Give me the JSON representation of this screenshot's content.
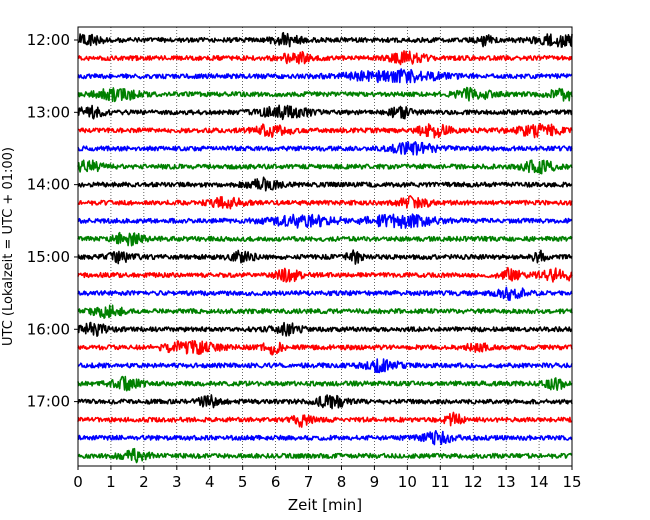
{
  "chart_data": {
    "type": "line",
    "title": "",
    "xlabel": "Zeit  [min]",
    "ylabel": "UTC (Lokalzeit = UTC + 01:00)",
    "xlim": [
      0,
      15
    ],
    "x_ticks": [
      "0",
      "1",
      "2",
      "3",
      "4",
      "5",
      "6",
      "7",
      "8",
      "9",
      "10",
      "11",
      "12",
      "13",
      "14",
      "15"
    ],
    "y_ticks": [
      {
        "label": "12:00",
        "row": 0
      },
      {
        "label": "13:00",
        "row": 4
      },
      {
        "label": "14:00",
        "row": 8
      },
      {
        "label": "15:00",
        "row": 12
      },
      {
        "label": "16:00",
        "row": 16
      },
      {
        "label": "17:00",
        "row": 20
      }
    ],
    "trace_colors": [
      "#000000",
      "#ff0000",
      "#0000ff",
      "#008000"
    ],
    "traces_count": 24,
    "row_start_times": [
      "12:00",
      "12:15",
      "12:30",
      "12:45",
      "13:00",
      "13:15",
      "13:30",
      "13:45",
      "14:00",
      "14:15",
      "14:30",
      "14:45",
      "15:00",
      "15:15",
      "15:30",
      "15:45",
      "16:00",
      "16:15",
      "16:30",
      "16:45",
      "17:00",
      "17:15",
      "17:30",
      "17:45"
    ],
    "events": [
      [
        [
          0.3,
          0.9
        ],
        [
          6.3,
          0.9
        ],
        [
          12.3,
          0.5
        ],
        [
          14.6,
          1.6
        ]
      ],
      [
        [
          6.6,
          1.0
        ],
        [
          10.0,
          1.1
        ]
      ],
      [
        [
          9.6,
          3.0
        ]
      ],
      [
        [
          1.2,
          1.3
        ],
        [
          12.0,
          1.1
        ],
        [
          14.9,
          1.2
        ]
      ],
      [
        [
          0.3,
          0.9
        ],
        [
          6.3,
          1.6
        ],
        [
          9.8,
          0.7
        ]
      ],
      [
        [
          5.9,
          1.2
        ],
        [
          10.8,
          1.1
        ],
        [
          14.0,
          1.5
        ]
      ],
      [
        [
          10.2,
          1.4
        ]
      ],
      [
        [
          0.3,
          0.9
        ],
        [
          14.0,
          1.1
        ]
      ],
      [
        [
          5.6,
          1.0
        ]
      ],
      [
        [
          4.5,
          1.0
        ],
        [
          10.2,
          1.0
        ]
      ],
      [
        [
          6.8,
          2.2
        ],
        [
          9.8,
          2.3
        ]
      ],
      [
        [
          1.5,
          1.0
        ]
      ],
      [
        [
          1.3,
          0.8
        ],
        [
          5.0,
          0.8
        ],
        [
          8.4,
          0.5
        ],
        [
          14.0,
          0.4
        ]
      ],
      [
        [
          6.4,
          0.8
        ],
        [
          13.1,
          0.8
        ],
        [
          14.6,
          1.2
        ]
      ],
      [
        [
          13.2,
          0.9
        ]
      ],
      [
        [
          0.9,
          1.0
        ]
      ],
      [
        [
          0.5,
          0.9
        ],
        [
          6.3,
          0.9
        ]
      ],
      [
        [
          3.4,
          1.8
        ],
        [
          5.9,
          0.6
        ],
        [
          12.1,
          0.6
        ]
      ],
      [
        [
          9.2,
          1.1
        ]
      ],
      [
        [
          1.5,
          1.0
        ],
        [
          14.5,
          0.6
        ]
      ],
      [
        [
          4.0,
          0.7
        ],
        [
          7.7,
          1.0
        ]
      ],
      [
        [
          6.8,
          0.6
        ],
        [
          11.4,
          0.6
        ]
      ],
      [
        [
          10.9,
          1.0
        ]
      ],
      [
        [
          1.7,
          1.0
        ]
      ]
    ]
  }
}
